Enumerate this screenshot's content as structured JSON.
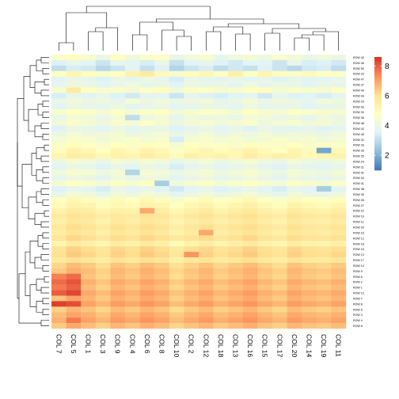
{
  "chart_data": {
    "type": "heatmap",
    "title": "",
    "cluster_rows": true,
    "cluster_cols": true,
    "legend": {
      "position": "right",
      "ticks": [
        2,
        4,
        6,
        8
      ],
      "range": [
        1.0,
        8.6
      ],
      "colors": [
        "#4575B4",
        "#91BFDB",
        "#E0F3F8",
        "#FFFFBF",
        "#FEE090",
        "#FC8D59",
        "#D73027"
      ]
    },
    "columns": [
      "COL 7",
      "COL 5",
      "COL 1",
      "COL 3",
      "COL 9",
      "COL 4",
      "COL 6",
      "COL 8",
      "COL 10",
      "COL 2",
      "COL 12",
      "COL 18",
      "COL 13",
      "COL 16",
      "COL 15",
      "COL 17",
      "COL 20",
      "COL 14",
      "COL 19",
      "COL 11"
    ],
    "rows": [
      "ROW 43",
      "ROW 46",
      "ROW 50",
      "ROW 23",
      "ROW 47",
      "ROW 37",
      "ROW 40",
      "ROW 44",
      "ROW 29",
      "ROW 39",
      "ROW 30",
      "ROW 36",
      "ROW 48",
      "ROW 42",
      "ROW 45",
      "ROW 32",
      "ROW 33",
      "ROW 26",
      "ROW 25",
      "ROW 24",
      "ROW 21",
      "ROW 41",
      "ROW 34",
      "ROW 31",
      "ROW 38",
      "ROW 35",
      "ROW 28",
      "ROW 27",
      "ROW 22",
      "ROW 19",
      "ROW 11",
      "ROW 20",
      "ROW 16",
      "ROW 12",
      "ROW 18",
      "ROW 15",
      "ROW 13",
      "ROW 17",
      "ROW 14",
      "ROW 9",
      "ROW 6",
      "ROW 2",
      "ROW 1",
      "ROW 10",
      "ROW 7",
      "ROW 8",
      "ROW 5",
      "ROW 3",
      "ROW 4",
      "ROW 9b"
    ],
    "row_labels_shown": [
      "ROW 43",
      "ROW 46",
      "ROW 50",
      "ROW 23",
      "ROW 47",
      "ROW 37",
      "ROW 40",
      "ROW 44",
      "ROW 29",
      "ROW 39",
      "ROW 30",
      "ROW 36",
      "ROW 48",
      "ROW 42",
      "ROW 45",
      "ROW 32",
      "ROW 33",
      "ROW 26",
      "ROW 25",
      "ROW 24",
      "ROW 21",
      "ROW 41",
      "ROW 34",
      "ROW 31",
      "ROW 38",
      "ROW 35",
      "ROW 28",
      "ROW 27",
      "ROW 22",
      "ROW 19",
      "ROW 11",
      "ROW 20",
      "ROW 16",
      "ROW 12",
      "ROW 18",
      "ROW 15",
      "ROW 13",
      "ROW 17",
      "ROW 14",
      "ROW 9",
      "ROW 6",
      "ROW 2",
      "ROW 1",
      "ROW 10",
      "ROW 7",
      "ROW 8",
      "ROW 5",
      "ROW 3",
      "ROW 4",
      "ROW 8"
    ],
    "values": [
      [
        4.6,
        4.9,
        4.5,
        4.0,
        4.8,
        4.2,
        4.6,
        4.7,
        3.9,
        4.3,
        4.5,
        3.8,
        4.2,
        4.4,
        4.1,
        4.6,
        4.3,
        3.9,
        4.2,
        4.0
      ],
      [
        3.5,
        3.9,
        3.6,
        3.2,
        3.8,
        3.7,
        3.4,
        3.9,
        3.1,
        3.6,
        3.8,
        3.5,
        3.3,
        3.7,
        3.6,
        3.2,
        3.8,
        3.4,
        3.5,
        3.3
      ],
      [
        3.0,
        3.4,
        3.3,
        2.9,
        3.2,
        3.6,
        3.1,
        3.5,
        2.8,
        3.2,
        3.4,
        3.0,
        3.3,
        3.1,
        3.5,
        3.2,
        2.9,
        3.3,
        3.4,
        3.0
      ],
      [
        4.8,
        5.2,
        4.9,
        4.6,
        4.7,
        5.3,
        5.6,
        5.0,
        4.5,
        4.9,
        5.1,
        4.7,
        5.4,
        4.8,
        5.2,
        4.9,
        4.6,
        5.0,
        4.8,
        4.7
      ],
      [
        3.6,
        3.9,
        3.8,
        3.5,
        4.0,
        3.7,
        4.1,
        3.8,
        3.4,
        3.9,
        3.8,
        3.7,
        4.0,
        3.6,
        3.9,
        3.5,
        3.8,
        3.7,
        3.6,
        3.9
      ],
      [
        3.8,
        4.1,
        4.0,
        3.7,
        3.9,
        4.2,
        3.8,
        4.0,
        3.6,
        4.1,
        3.9,
        4.0,
        3.7,
        4.2,
        3.8,
        4.1,
        3.9,
        3.7,
        4.0,
        3.8
      ],
      [
        4.4,
        5.6,
        4.8,
        4.5,
        4.6,
        4.3,
        4.7,
        4.9,
        4.2,
        4.6,
        4.8,
        4.4,
        4.5,
        4.7,
        4.9,
        4.3,
        4.6,
        4.5,
        4.4,
        4.7
      ],
      [
        3.4,
        3.8,
        3.6,
        3.9,
        3.5,
        3.3,
        3.7,
        3.6,
        3.2,
        3.8,
        3.5,
        3.4,
        3.6,
        3.7,
        3.3,
        3.8,
        3.5,
        3.6,
        3.4,
        3.7
      ],
      [
        3.9,
        4.2,
        4.0,
        4.1,
        3.8,
        4.3,
        4.0,
        4.2,
        3.9,
        4.1,
        4.2,
        3.8,
        4.0,
        4.3,
        3.9,
        4.1,
        4.0,
        3.8,
        4.2,
        4.1
      ],
      [
        3.7,
        4.0,
        3.9,
        3.8,
        4.1,
        3.6,
        3.9,
        4.0,
        3.7,
        3.8,
        4.0,
        3.9,
        3.7,
        4.1,
        3.8,
        3.9,
        4.0,
        3.6,
        3.8,
        4.0
      ],
      [
        4.5,
        4.8,
        4.6,
        4.3,
        4.7,
        4.4,
        4.6,
        4.8,
        4.2,
        4.5,
        4.7,
        4.6,
        4.4,
        4.8,
        4.5,
        4.3,
        4.7,
        4.6,
        4.5,
        4.4
      ],
      [
        3.9,
        4.3,
        4.2,
        4.0,
        4.4,
        3.0,
        4.1,
        4.3,
        3.8,
        4.2,
        4.0,
        4.1,
        3.9,
        4.3,
        4.2,
        4.0,
        4.1,
        3.8,
        4.2,
        4.0
      ],
      [
        4.2,
        4.6,
        4.4,
        4.1,
        4.5,
        4.3,
        4.7,
        4.4,
        4.0,
        4.3,
        4.5,
        4.2,
        4.4,
        4.6,
        4.1,
        4.3,
        4.5,
        4.2,
        4.4,
        4.1
      ],
      [
        3.5,
        3.9,
        3.8,
        3.6,
        4.0,
        3.7,
        3.8,
        3.9,
        3.5,
        3.7,
        3.9,
        3.6,
        3.8,
        3.5,
        3.9,
        3.7,
        3.6,
        3.8,
        3.5,
        3.7
      ],
      [
        4.0,
        4.3,
        4.1,
        4.2,
        4.4,
        4.0,
        4.2,
        4.3,
        3.9,
        4.1,
        4.3,
        4.0,
        4.2,
        4.1,
        4.3,
        4.0,
        4.2,
        4.1,
        4.0,
        4.2
      ],
      [
        4.3,
        4.6,
        4.5,
        4.2,
        4.4,
        4.6,
        4.3,
        4.5,
        3.4,
        4.4,
        4.6,
        4.3,
        4.5,
        4.2,
        4.4,
        4.6,
        4.3,
        4.5,
        4.2,
        4.4
      ],
      [
        4.6,
        4.9,
        4.7,
        4.5,
        4.8,
        4.6,
        4.9,
        4.7,
        4.4,
        4.8,
        4.6,
        4.7,
        4.5,
        4.9,
        4.7,
        4.6,
        4.8,
        4.5,
        4.7,
        4.6
      ],
      [
        4.9,
        5.3,
        5.1,
        4.8,
        5.2,
        5.0,
        5.3,
        5.1,
        4.7,
        5.0,
        5.2,
        4.9,
        5.1,
        5.3,
        5.0,
        4.8,
        5.2,
        5.0,
        1.8,
        5.1
      ],
      [
        5.2,
        5.5,
        5.4,
        5.1,
        5.3,
        5.2,
        5.5,
        5.3,
        5.0,
        5.4,
        5.2,
        5.3,
        5.1,
        5.5,
        5.2,
        5.4,
        5.3,
        5.0,
        5.2,
        5.3
      ],
      [
        4.0,
        4.4,
        4.2,
        3.9,
        4.3,
        4.1,
        4.4,
        4.2,
        3.8,
        4.1,
        4.3,
        4.0,
        4.2,
        4.4,
        4.1,
        3.9,
        4.3,
        4.1,
        4.0,
        4.2
      ],
      [
        3.6,
        4.0,
        3.8,
        3.5,
        3.9,
        3.7,
        4.0,
        3.8,
        3.4,
        3.7,
        3.9,
        3.6,
        3.8,
        4.0,
        3.7,
        3.5,
        3.9,
        3.7,
        3.6,
        3.8
      ],
      [
        4.2,
        4.5,
        4.4,
        4.1,
        4.3,
        2.8,
        4.4,
        4.3,
        4.0,
        4.2,
        4.4,
        4.1,
        4.3,
        4.5,
        4.2,
        4.0,
        4.4,
        4.2,
        4.1,
        4.3
      ],
      [
        3.8,
        4.1,
        4.0,
        3.7,
        4.2,
        3.9,
        4.1,
        4.0,
        3.6,
        3.9,
        4.1,
        3.8,
        4.0,
        4.2,
        3.9,
        3.7,
        4.1,
        3.9,
        3.8,
        4.0
      ],
      [
        4.4,
        4.8,
        4.6,
        4.3,
        4.7,
        4.5,
        4.8,
        2.6,
        4.2,
        4.5,
        4.7,
        4.4,
        4.6,
        4.8,
        4.5,
        4.3,
        4.7,
        4.5,
        4.4,
        4.6
      ],
      [
        3.5,
        3.8,
        3.7,
        3.4,
        3.9,
        3.6,
        3.8,
        3.7,
        3.3,
        3.6,
        3.8,
        3.5,
        3.7,
        3.9,
        3.6,
        3.4,
        3.8,
        3.6,
        2.6,
        3.7
      ],
      [
        3.9,
        4.3,
        4.1,
        3.8,
        4.2,
        4.0,
        4.3,
        4.1,
        3.7,
        4.0,
        4.2,
        3.9,
        4.1,
        4.3,
        4.0,
        3.8,
        4.2,
        4.0,
        3.9,
        4.1
      ],
      [
        4.7,
        5.1,
        4.9,
        4.6,
        5.0,
        4.8,
        5.1,
        4.9,
        4.5,
        4.8,
        5.0,
        4.7,
        4.9,
        5.1,
        4.8,
        4.6,
        5.0,
        4.8,
        4.7,
        4.9
      ],
      [
        5.0,
        5.3,
        5.2,
        4.9,
        5.1,
        5.0,
        5.3,
        5.2,
        4.8,
        5.1,
        5.3,
        5.0,
        5.2,
        5.4,
        5.1,
        4.9,
        5.3,
        5.1,
        5.0,
        5.2
      ],
      [
        5.3,
        5.6,
        5.5,
        5.2,
        5.4,
        5.3,
        6.9,
        5.5,
        5.1,
        5.4,
        5.6,
        5.3,
        5.5,
        5.7,
        5.4,
        5.2,
        5.6,
        5.4,
        5.3,
        5.5
      ],
      [
        5.6,
        5.9,
        5.8,
        5.5,
        5.7,
        5.6,
        5.9,
        5.8,
        5.4,
        5.7,
        5.9,
        5.6,
        5.8,
        6.0,
        5.7,
        5.5,
        5.9,
        5.7,
        5.6,
        5.8
      ],
      [
        5.4,
        5.8,
        5.6,
        5.3,
        5.7,
        5.5,
        5.8,
        5.6,
        5.2,
        5.5,
        5.7,
        5.4,
        5.6,
        5.8,
        5.5,
        5.3,
        5.7,
        5.5,
        5.4,
        5.6
      ],
      [
        5.7,
        6.1,
        5.9,
        5.6,
        6.0,
        5.8,
        6.1,
        5.9,
        5.5,
        5.8,
        6.0,
        5.7,
        5.9,
        6.1,
        5.8,
        5.6,
        6.0,
        5.8,
        5.7,
        5.9
      ],
      [
        5.5,
        5.9,
        5.7,
        5.4,
        5.8,
        5.6,
        5.9,
        5.7,
        5.3,
        5.6,
        6.9,
        5.5,
        5.7,
        5.9,
        5.6,
        5.4,
        5.8,
        5.6,
        5.5,
        5.7
      ],
      [
        5.8,
        6.2,
        6.0,
        5.7,
        6.1,
        5.9,
        6.2,
        6.0,
        5.6,
        5.9,
        6.1,
        5.8,
        6.0,
        6.2,
        5.9,
        5.7,
        6.1,
        5.9,
        5.8,
        6.0
      ],
      [
        5.2,
        5.6,
        5.4,
        5.1,
        5.5,
        5.3,
        5.6,
        5.4,
        5.0,
        5.3,
        5.5,
        5.2,
        5.4,
        5.6,
        5.3,
        5.1,
        5.5,
        5.3,
        5.2,
        5.4
      ],
      [
        5.9,
        6.3,
        6.1,
        5.8,
        6.2,
        6.0,
        6.3,
        6.1,
        5.7,
        6.0,
        6.2,
        5.9,
        6.1,
        6.3,
        6.0,
        5.8,
        6.2,
        6.0,
        5.9,
        6.1
      ],
      [
        6.0,
        6.4,
        6.2,
        5.9,
        6.3,
        6.1,
        6.4,
        6.2,
        5.8,
        7.2,
        6.3,
        6.0,
        6.2,
        6.4,
        6.1,
        5.9,
        6.3,
        6.1,
        6.0,
        6.2
      ],
      [
        5.6,
        6.0,
        5.8,
        5.5,
        5.9,
        5.7,
        6.0,
        5.8,
        5.4,
        5.7,
        5.9,
        5.6,
        5.8,
        6.0,
        5.7,
        5.5,
        5.9,
        5.7,
        5.6,
        5.8
      ],
      [
        6.2,
        6.6,
        6.4,
        6.1,
        6.5,
        6.3,
        6.6,
        6.4,
        6.0,
        6.3,
        6.5,
        6.2,
        6.4,
        6.6,
        6.3,
        6.1,
        6.5,
        6.3,
        6.2,
        6.4
      ],
      [
        6.4,
        6.8,
        6.6,
        6.3,
        6.7,
        6.5,
        6.8,
        6.6,
        6.2,
        6.5,
        6.7,
        6.4,
        6.6,
        6.8,
        6.5,
        6.3,
        6.7,
        6.5,
        6.4,
        6.6
      ],
      [
        7.5,
        7.8,
        6.5,
        6.2,
        6.6,
        6.4,
        6.7,
        6.5,
        6.1,
        6.4,
        6.6,
        6.3,
        6.5,
        6.7,
        6.4,
        6.2,
        6.6,
        6.4,
        6.3,
        6.5
      ],
      [
        7.8,
        8.1,
        6.8,
        6.5,
        6.9,
        6.7,
        7.0,
        6.8,
        6.4,
        6.7,
        6.9,
        6.6,
        6.8,
        7.0,
        6.7,
        6.5,
        6.9,
        6.7,
        6.6,
        6.8
      ],
      [
        7.6,
        7.9,
        6.6,
        6.3,
        6.7,
        6.5,
        6.8,
        6.6,
        6.2,
        6.5,
        6.7,
        6.4,
        6.6,
        6.8,
        6.5,
        6.3,
        6.7,
        6.5,
        6.4,
        6.6
      ],
      [
        8.0,
        8.3,
        6.9,
        6.6,
        7.0,
        6.8,
        7.1,
        6.9,
        6.5,
        6.8,
        7.0,
        6.7,
        6.9,
        7.1,
        6.8,
        6.6,
        7.0,
        6.8,
        6.7,
        6.9
      ],
      [
        6.5,
        7.0,
        6.7,
        6.4,
        6.8,
        6.6,
        6.9,
        6.7,
        6.3,
        6.6,
        6.8,
        6.5,
        6.7,
        6.9,
        6.6,
        6.4,
        6.8,
        6.6,
        6.5,
        6.7
      ],
      [
        8.4,
        8.2,
        7.0,
        6.7,
        7.1,
        6.9,
        7.2,
        7.0,
        6.6,
        6.9,
        7.1,
        6.8,
        7.0,
        7.2,
        6.9,
        6.7,
        7.1,
        6.9,
        6.8,
        7.0
      ],
      [
        6.3,
        6.7,
        6.5,
        6.2,
        6.6,
        6.4,
        6.7,
        6.5,
        6.1,
        6.4,
        6.6,
        6.3,
        6.5,
        6.7,
        6.4,
        6.2,
        6.6,
        6.4,
        6.3,
        6.5
      ],
      [
        6.6,
        7.0,
        6.8,
        6.5,
        6.9,
        6.7,
        7.0,
        6.8,
        6.4,
        6.7,
        6.9,
        6.6,
        6.8,
        7.0,
        6.7,
        6.5,
        6.9,
        6.7,
        6.6,
        6.8
      ],
      [
        6.8,
        7.6,
        7.0,
        6.7,
        7.1,
        6.9,
        7.2,
        7.0,
        6.6,
        6.9,
        7.1,
        6.8,
        7.0,
        7.2,
        6.9,
        6.7,
        7.1,
        6.9,
        6.8,
        7.0
      ],
      [
        6.4,
        6.9,
        6.6,
        6.3,
        6.7,
        6.5,
        6.8,
        6.6,
        6.2,
        6.5,
        6.7,
        6.4,
        6.6,
        6.8,
        6.5,
        6.3,
        6.7,
        6.5,
        6.4,
        6.6
      ]
    ]
  }
}
